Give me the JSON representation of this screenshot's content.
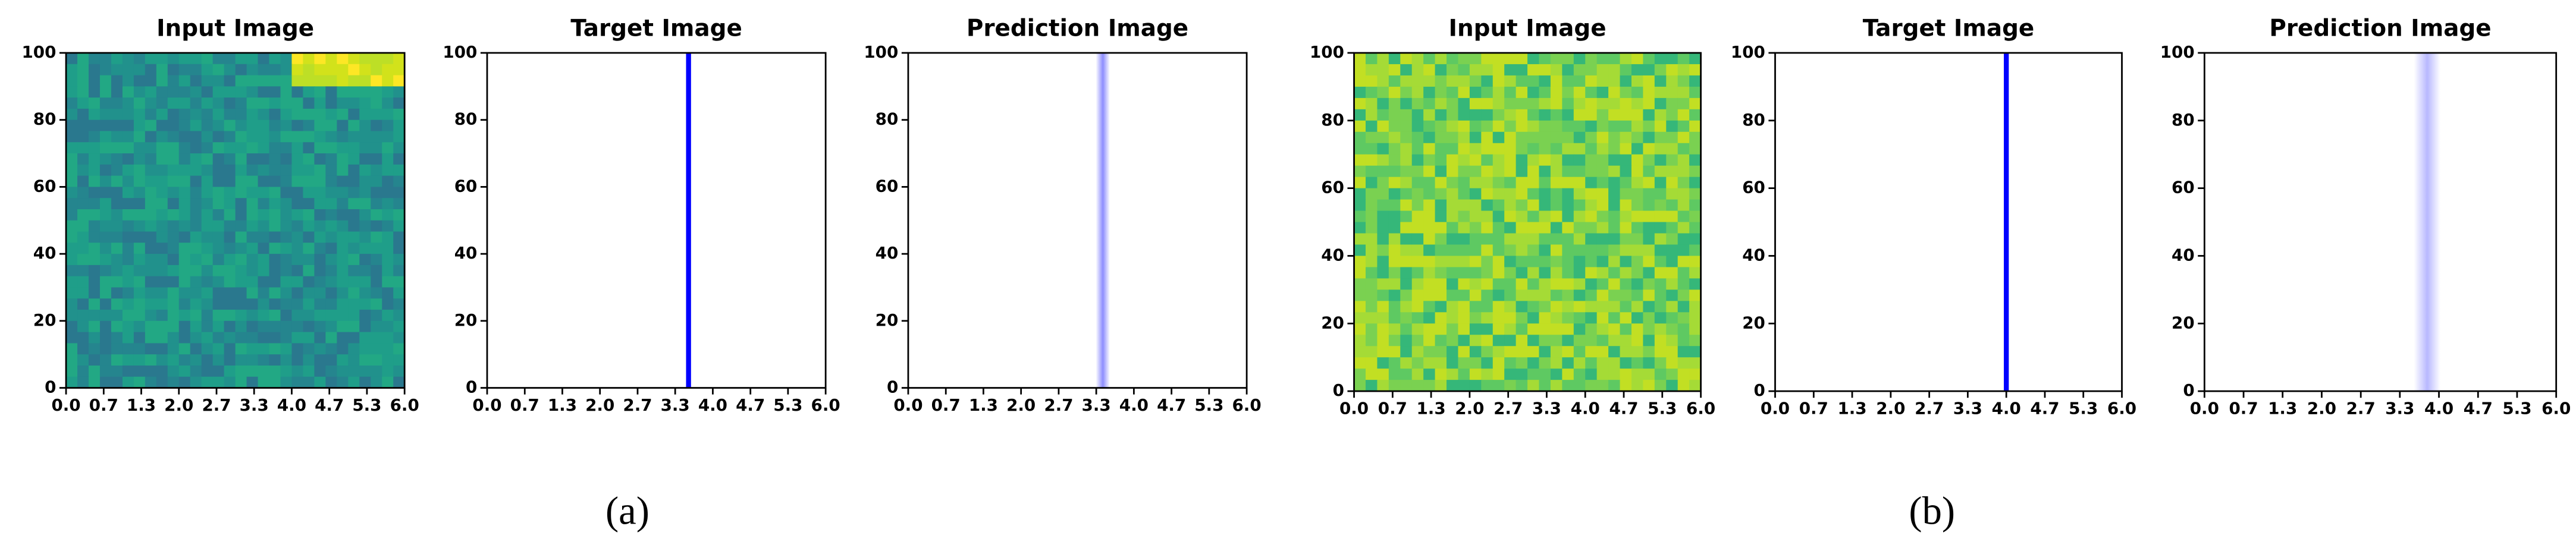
{
  "chart_data": [
    {
      "type": "heatmap",
      "title": "Input Image",
      "xlim": [
        0,
        6
      ],
      "ylim": [
        0,
        100
      ],
      "xticks": [
        {
          "value": 0,
          "label": "0.0"
        },
        {
          "value": 0.667,
          "label": "0.7"
        },
        {
          "value": 1.333,
          "label": "1.3"
        },
        {
          "value": 2,
          "label": "2.0"
        },
        {
          "value": 2.667,
          "label": "2.7"
        },
        {
          "value": 3.333,
          "label": "3.3"
        },
        {
          "value": 4,
          "label": "4.0"
        },
        {
          "value": 4.667,
          "label": "4.7"
        },
        {
          "value": 5.333,
          "label": "5.3"
        },
        {
          "value": 6,
          "label": "6.0"
        }
      ],
      "yticks": [
        0,
        20,
        40,
        60,
        80,
        100
      ],
      "colors": [
        "#2a788e",
        "#25858e",
        "#21918c",
        "#1f9e89",
        "#22a884"
      ],
      "hot_colors": [
        "#bddf26",
        "#d2e21b",
        "#fde725"
      ]
    },
    {
      "type": "line",
      "title": "Target Image",
      "xlim": [
        0,
        6
      ],
      "ylim": [
        0,
        100
      ],
      "xticks": [
        {
          "value": 0,
          "label": "0.0"
        },
        {
          "value": 0.667,
          "label": "0.7"
        },
        {
          "value": 1.333,
          "label": "1.3"
        },
        {
          "value": 2,
          "label": "2.0"
        },
        {
          "value": 2.667,
          "label": "2.7"
        },
        {
          "value": 3.333,
          "label": "3.3"
        },
        {
          "value": 4,
          "label": "4.0"
        },
        {
          "value": 4.667,
          "label": "4.7"
        },
        {
          "value": 5.333,
          "label": "5.3"
        },
        {
          "value": 6,
          "label": "6.0"
        }
      ],
      "yticks": [
        0,
        20,
        40,
        60,
        80,
        100
      ],
      "x": 3.57,
      "color": "#0000ff"
    },
    {
      "type": "blur",
      "title": "Prediction Image",
      "xlim": [
        0,
        6
      ],
      "ylim": [
        0,
        100
      ],
      "xticks": [
        {
          "value": 0,
          "label": "0.0"
        },
        {
          "value": 0.667,
          "label": "0.7"
        },
        {
          "value": 1.333,
          "label": "1.3"
        },
        {
          "value": 2,
          "label": "2.0"
        },
        {
          "value": 2.667,
          "label": "2.7"
        },
        {
          "value": 3.333,
          "label": "3.3"
        },
        {
          "value": 4,
          "label": "4.0"
        },
        {
          "value": 4.667,
          "label": "4.7"
        },
        {
          "value": 5.333,
          "label": "5.3"
        },
        {
          "value": 6,
          "label": "6.0"
        }
      ],
      "yticks": [
        0,
        20,
        40,
        60,
        80,
        100
      ],
      "x": 3.45,
      "width": 0.25,
      "color": "#8080ff"
    },
    {
      "type": "heatmap",
      "title": "Input Image",
      "xlim": [
        0,
        6
      ],
      "ylim": [
        0,
        100
      ],
      "xticks": [
        {
          "value": 0,
          "label": "0.0"
        },
        {
          "value": 0.667,
          "label": "0.7"
        },
        {
          "value": 1.333,
          "label": "1.3"
        },
        {
          "value": 2,
          "label": "2.0"
        },
        {
          "value": 2.667,
          "label": "2.7"
        },
        {
          "value": 3.333,
          "label": "3.3"
        },
        {
          "value": 4,
          "label": "4.0"
        },
        {
          "value": 4.667,
          "label": "4.7"
        },
        {
          "value": 5.333,
          "label": "5.3"
        },
        {
          "value": 6,
          "label": "6.0"
        }
      ],
      "yticks": [
        0,
        20,
        40,
        60,
        80,
        100
      ],
      "colors": [
        "#35b779",
        "#5ec962",
        "#7ad151",
        "#a5db36",
        "#c2df23"
      ]
    },
    {
      "type": "line",
      "title": "Target Image",
      "xlim": [
        0,
        6
      ],
      "ylim": [
        0,
        100
      ],
      "xticks": [
        {
          "value": 0,
          "label": "0.0"
        },
        {
          "value": 0.667,
          "label": "0.7"
        },
        {
          "value": 1.333,
          "label": "1.3"
        },
        {
          "value": 2,
          "label": "2.0"
        },
        {
          "value": 2.667,
          "label": "2.7"
        },
        {
          "value": 3.333,
          "label": "3.3"
        },
        {
          "value": 4,
          "label": "4.0"
        },
        {
          "value": 4.667,
          "label": "4.7"
        },
        {
          "value": 5.333,
          "label": "5.3"
        },
        {
          "value": 6,
          "label": "6.0"
        }
      ],
      "yticks": [
        0,
        20,
        40,
        60,
        80,
        100
      ],
      "x": 4.0,
      "color": "#0000ff"
    },
    {
      "type": "blur",
      "title": "Prediction Image",
      "xlim": [
        0,
        6
      ],
      "ylim": [
        0,
        100
      ],
      "xticks": [
        {
          "value": 0,
          "label": "0.0"
        },
        {
          "value": 0.667,
          "label": "0.7"
        },
        {
          "value": 1.333,
          "label": "1.3"
        },
        {
          "value": 2,
          "label": "2.0"
        },
        {
          "value": 2.667,
          "label": "2.7"
        },
        {
          "value": 3.333,
          "label": "3.3"
        },
        {
          "value": 4,
          "label": "4.0"
        },
        {
          "value": 4.667,
          "label": "4.7"
        },
        {
          "value": 5.333,
          "label": "5.3"
        },
        {
          "value": 6,
          "label": "6.0"
        }
      ],
      "yticks": [
        0,
        20,
        40,
        60,
        80,
        100
      ],
      "x": 3.8,
      "width": 0.45,
      "color": "#b0b0ff"
    }
  ],
  "figure_labels": [
    "(a)",
    "(b)"
  ]
}
